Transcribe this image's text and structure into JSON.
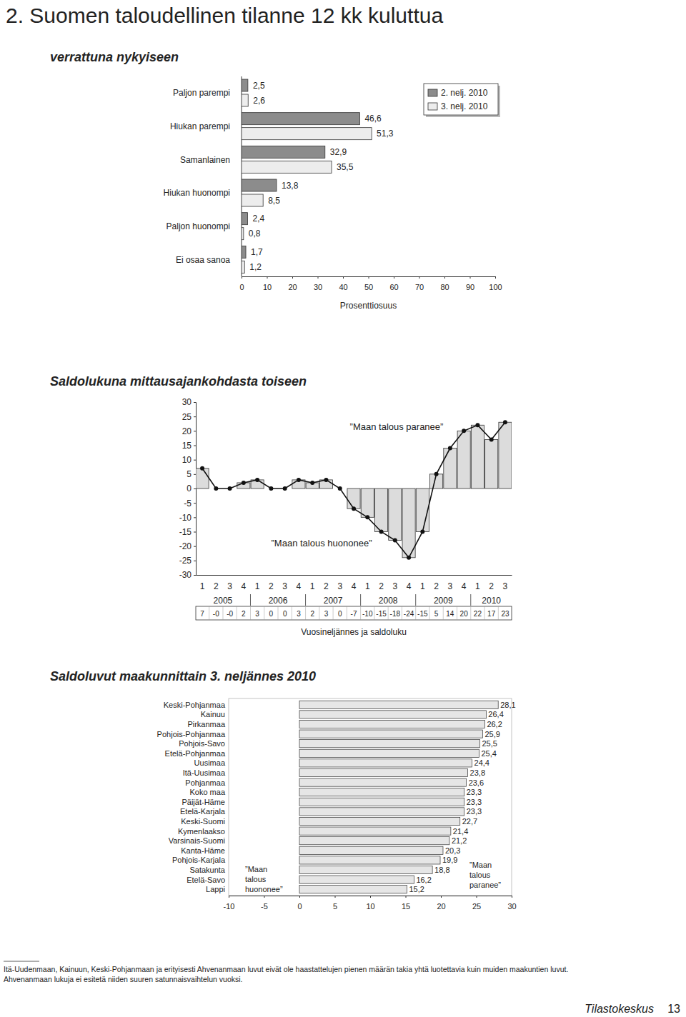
{
  "page": {
    "title": "2. Suomen taloudellinen tilanne 12 kk kuluttua",
    "footnote": [
      "Itä-Uudenmaan, Kainuun, Keski-Pohjanmaan ja erityisesti Ahvenanmaan luvut eivät ole haastattelujen pienen määrän takia yhtä luotettavia kuin muiden maakuntien luvut.",
      "Ahvenanmaan lukuja ei esitetä niiden suuren satunnaisvaihtelun vuoksi."
    ],
    "footer": "Tilastokeskus",
    "page_number": 13
  },
  "chart_data": [
    {
      "type": "bar",
      "orientation": "horizontal",
      "title": "verrattuna nykyiseen",
      "categories": [
        "Paljon parempi",
        "Hiukan parempi",
        "Samanlainen",
        "Hiukan huonompi",
        "Paljon huonompi",
        "Ei osaa sanoa"
      ],
      "series": [
        {
          "name": "2. nelj. 2010",
          "color": "#8c8c8c",
          "values": [
            2.5,
            46.6,
            32.9,
            13.8,
            2.4,
            1.7
          ],
          "value_labels": [
            "2,5",
            "46,6",
            "32,9",
            "13,8",
            "2,4",
            "1,7"
          ]
        },
        {
          "name": "3. nelj. 2010",
          "color": "#ededed",
          "values": [
            2.6,
            51.3,
            35.5,
            8.5,
            0.8,
            1.2
          ],
          "value_labels": [
            "2,6",
            "51,3",
            "35,5",
            "8,5",
            "0,8",
            "1,2"
          ]
        }
      ],
      "xlim": [
        0,
        100
      ],
      "xticks": [
        0,
        10,
        20,
        30,
        40,
        50,
        60,
        70,
        80,
        90,
        100
      ],
      "x_label": "Prosenttiosuus",
      "data_labels": true,
      "legend": "top-right"
    },
    {
      "type": "combo",
      "title": "Saldolukuna mittausajankohdasta toiseen",
      "categories": [
        "1",
        "2",
        "3",
        "4",
        "1",
        "2",
        "3",
        "4",
        "1",
        "2",
        "3",
        "4",
        "1",
        "2",
        "3",
        "4",
        "1",
        "2",
        "3",
        "4",
        "1",
        "2",
        "3"
      ],
      "groups": [
        {
          "label": "2005",
          "count": 4
        },
        {
          "label": "2006",
          "count": 4
        },
        {
          "label": "2007",
          "count": 4
        },
        {
          "label": "2008",
          "count": 4
        },
        {
          "label": "2009",
          "count": 4
        },
        {
          "label": "2010",
          "count": 3
        }
      ],
      "values": [
        7,
        0,
        0,
        2,
        3,
        0,
        0,
        3,
        2,
        3,
        0,
        -7,
        -10,
        -15,
        -18,
        -24,
        -15,
        5,
        14,
        20,
        22,
        17,
        23
      ],
      "value_labels": [
        "7",
        "-0",
        "-0",
        "2",
        "3",
        "0",
        "0",
        "3",
        "2",
        "3",
        "0",
        "-7",
        "-10",
        "-15",
        "-18",
        "-24",
        "-15",
        "5",
        "14",
        "20",
        "22",
        "17",
        "23"
      ],
      "color": "#dcdcdc",
      "marker": "circle",
      "line_style": "solid",
      "ylim": [
        -30,
        30
      ],
      "yticks": [
        -30,
        -25,
        -20,
        -15,
        -10,
        -5,
        0,
        5,
        10,
        15,
        20,
        25,
        30
      ],
      "x_label": "Vuosineljännes ja saldoluku",
      "annotations": [
        "”Maan talous paranee”",
        "”Maan talous huononee”"
      ],
      "data_labels": true
    },
    {
      "type": "bar",
      "orientation": "horizontal",
      "title": "Saldoluvut maakunnittain 3. neljännes 2010",
      "categories": [
        "Keski-Pohjanmaa",
        "Kainuu",
        "Pirkanmaa",
        "Pohjois-Pohjanmaa",
        "Pohjois-Savo",
        "Etelä-Pohjanmaa",
        "Uusimaa",
        "Itä-Uusimaa",
        "Pohjanmaa",
        "Koko maa",
        "Päijät-Häme",
        "Etelä-Karjala",
        "Keski-Suomi",
        "Kymenlaakso",
        "Varsinais-Suomi",
        "Kanta-Häme",
        "Pohjois-Karjala",
        "Satakunta",
        "Etelä-Savo",
        "Lappi"
      ],
      "values": [
        28.1,
        26.4,
        26.2,
        25.9,
        25.5,
        25.4,
        24.4,
        23.8,
        23.6,
        23.3,
        23.3,
        23.3,
        22.7,
        21.4,
        21.2,
        20.3,
        19.9,
        18.8,
        16.2,
        15.2
      ],
      "value_labels": [
        "28,1",
        "26,4",
        "26,2",
        "25,9",
        "25,5",
        "25,4",
        "24,4",
        "23,8",
        "23,6",
        "23,3",
        "23,3",
        "23,3",
        "22,7",
        "21,4",
        "21,2",
        "20,3",
        "19,9",
        "18,8",
        "16,2",
        "15,2"
      ],
      "color": "#e6e6e6",
      "xlim": [
        -10,
        30
      ],
      "xticks": [
        -10,
        -5,
        0,
        5,
        10,
        15,
        20,
        25,
        30
      ],
      "annotations": [
        "”Maan talous huononee”",
        "”Maan talous paranee”"
      ],
      "data_labels": true
    }
  ]
}
